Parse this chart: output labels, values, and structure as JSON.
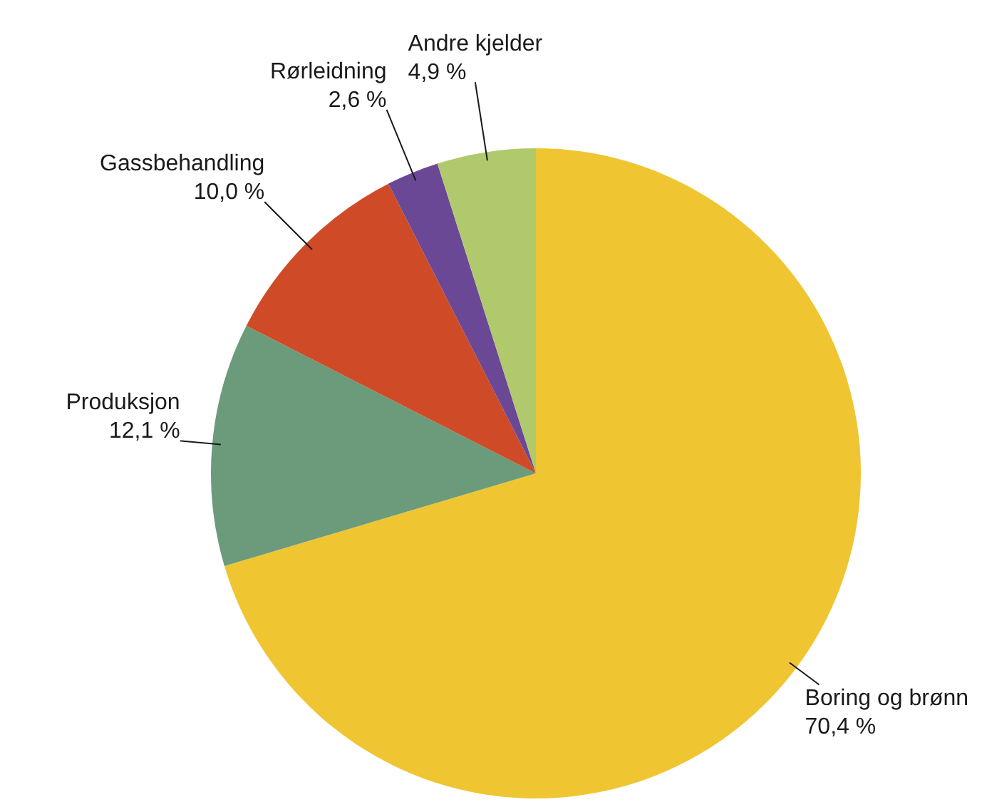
{
  "chart_data": {
    "type": "pie",
    "categories": [
      "Boring og brønn",
      "Produksjon",
      "Gassbehandling",
      "Rørleidning",
      "Andre kjelder"
    ],
    "values": [
      70.4,
      12.1,
      10.0,
      2.6,
      4.9
    ],
    "value_labels": [
      "70,4 %",
      "12,1 %",
      "10,0 %",
      "2,6 %",
      "4,9 %"
    ],
    "colors": [
      "#efc531",
      "#6b9b7b",
      "#cf4b27",
      "#6b4896",
      "#b0c96c"
    ],
    "legend": false
  }
}
